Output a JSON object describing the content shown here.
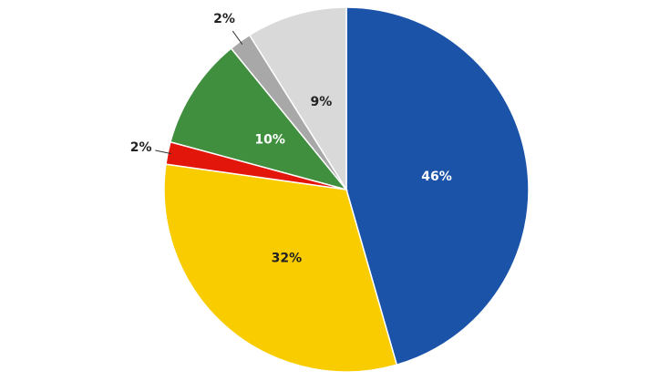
{
  "chart_data": {
    "type": "pie",
    "values": [
      46,
      32,
      2,
      10,
      2,
      9
    ],
    "value_labels": [
      "46%",
      "32%",
      "2%",
      "10%",
      "2%",
      "9%"
    ],
    "colors": [
      "#1a53a8",
      "#f9cc00",
      "#e3160b",
      "#3f8f3f",
      "#a8a8a8",
      "#d9d9d9"
    ]
  }
}
